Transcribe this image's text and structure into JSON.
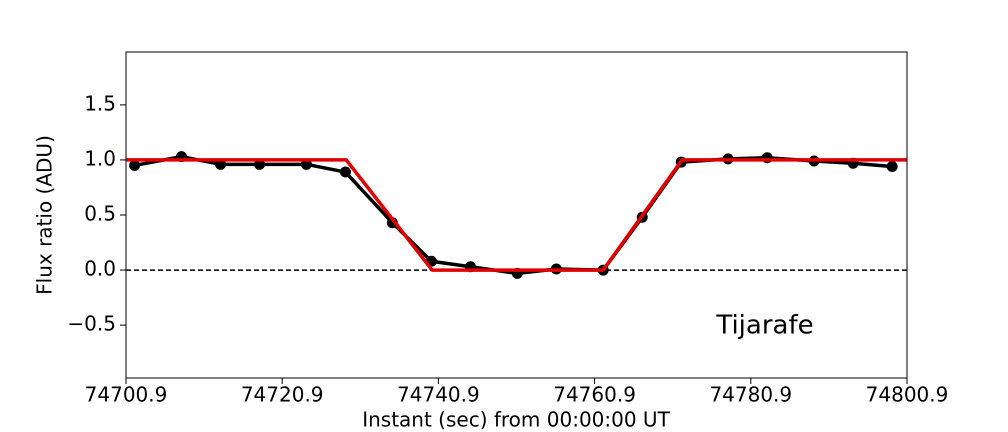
{
  "chart_data": {
    "type": "line",
    "xlabel": "Instant (sec) from 00:00:00 UT",
    "ylabel": "Flux ratio (ADU)",
    "annotation": "Tijarafe",
    "xlim": [
      74700.9,
      74800.9
    ],
    "ylim": [
      -0.98,
      1.98
    ],
    "xticks": [
      74700.9,
      74720.9,
      74740.9,
      74760.9,
      74780.9,
      74800.9
    ],
    "yticks": [
      {
        "value": -0.5,
        "label": "−0.5"
      },
      {
        "value": 0,
        "label": "0.0"
      },
      0.5,
      {
        "value": 1,
        "label": "1.0"
      },
      1.5
    ],
    "hline": 0,
    "series": [
      {
        "color": "#000000",
        "marker": true,
        "x": [
          74702.0,
          74708.0,
          74713.0,
          74718.0,
          74724.0,
          74729.0,
          74735.0,
          74740.0,
          74745.0,
          74751.0,
          74756.0,
          74762.0,
          74767.0,
          74772.0,
          74778.0,
          74783.0,
          74789.0,
          74794.0,
          74799.0
        ],
        "values": [
          0.95,
          1.03,
          0.96,
          0.96,
          0.96,
          0.89,
          0.43,
          0.08,
          0.03,
          -0.03,
          0.01,
          0.0,
          0.48,
          0.98,
          1.01,
          1.02,
          0.99,
          0.97,
          0.94
        ]
      },
      {
        "color": "#e00000",
        "marker": false,
        "x": [
          74700.9,
          74729.1,
          74740.1,
          74762.0,
          74772.1,
          74800.9
        ],
        "values": [
          1,
          1,
          0,
          0,
          1,
          1
        ]
      }
    ]
  }
}
